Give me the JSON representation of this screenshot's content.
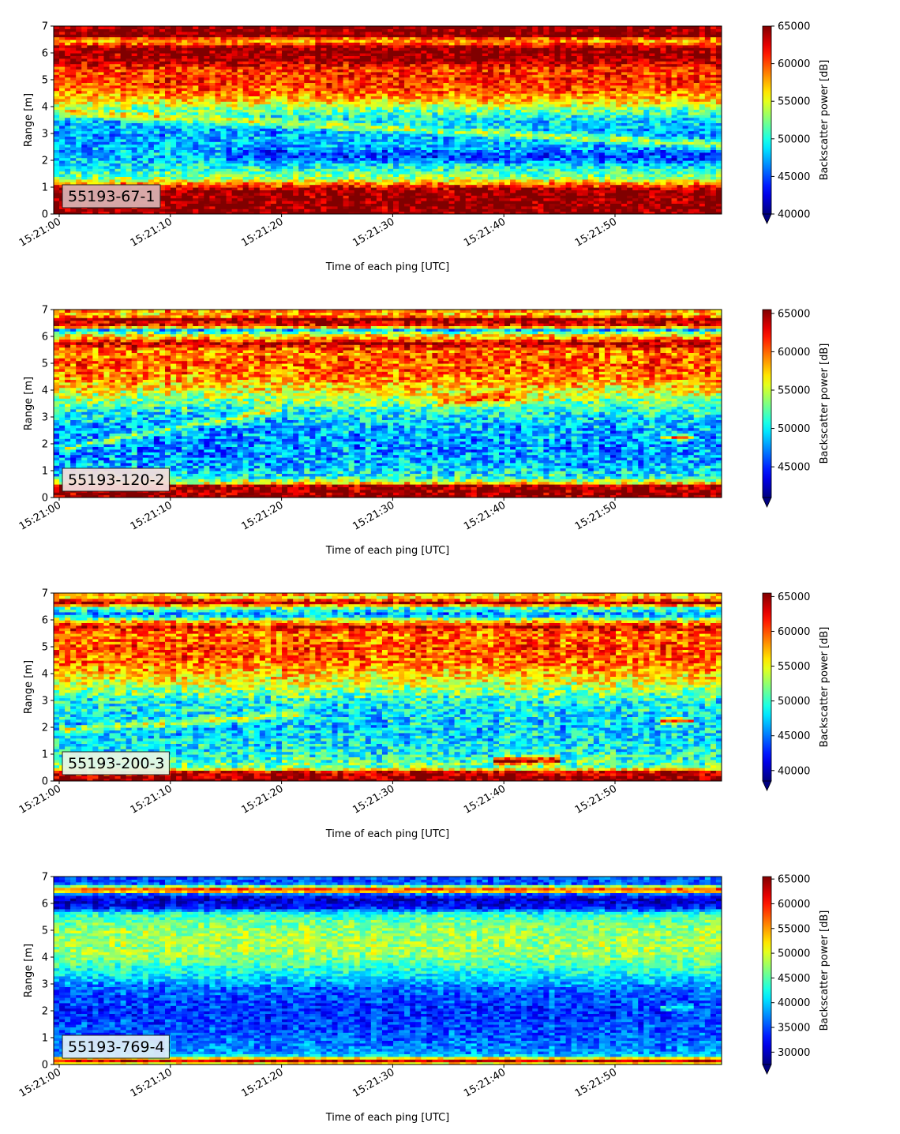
{
  "figure": {
    "xlabel": "Time of each ping [UTC]",
    "ylabel": "Range [m]",
    "colorbar_label": "Backscatter power [dB]"
  },
  "chart_data": [
    {
      "type": "heatmap",
      "label": "55193-67-1",
      "label_box_color": "#d9b0b0",
      "x_ticks": [
        "15:21:00",
        "15:21:10",
        "15:21:20",
        "15:21:30",
        "15:21:40",
        "15:21:50"
      ],
      "y_ticks": [
        0,
        1,
        2,
        3,
        4,
        5,
        6,
        7
      ],
      "ylim": [
        0,
        7
      ],
      "colorbar": {
        "min": 40000,
        "max": 65000,
        "ticks": [
          40000,
          45000,
          50000,
          55000,
          60000,
          65000
        ],
        "colormap": "jet",
        "extend": "min"
      },
      "range_profile": [
        [
          0.0,
          65000
        ],
        [
          0.2,
          65000
        ],
        [
          0.9,
          64500
        ],
        [
          1.05,
          61000
        ],
        [
          1.2,
          57000
        ],
        [
          1.35,
          53000
        ],
        [
          1.6,
          51000
        ],
        [
          2.0,
          48500
        ],
        [
          2.5,
          47500
        ],
        [
          3.0,
          47000
        ],
        [
          3.5,
          48500
        ],
        [
          3.9,
          52000
        ],
        [
          4.2,
          56500
        ],
        [
          4.6,
          59500
        ],
        [
          5.0,
          61000
        ],
        [
          5.4,
          60500
        ],
        [
          5.7,
          64000
        ],
        [
          6.2,
          65000
        ],
        [
          6.35,
          60000
        ],
        [
          6.5,
          57000
        ],
        [
          6.65,
          65000
        ],
        [
          7.0,
          65000
        ]
      ],
      "features": [
        {
          "y_start": 3.8,
          "y_end": 2.6,
          "t_start": 0,
          "t_end": 60,
          "strength": 6000,
          "width": 0.15
        },
        {
          "y_start": 2.2,
          "y_end": 2.1,
          "t_start": 15,
          "t_end": 60,
          "strength": -3500,
          "width": 0.25
        }
      ],
      "noise": 3200,
      "seed": 11
    },
    {
      "type": "heatmap",
      "label": "55193-120-2",
      "label_box_color": "#f2dcdc",
      "x_ticks": [
        "15:21:00",
        "15:21:10",
        "15:21:20",
        "15:21:30",
        "15:21:40",
        "15:21:50"
      ],
      "y_ticks": [
        0,
        1,
        2,
        3,
        4,
        5,
        6,
        7
      ],
      "ylim": [
        0,
        7
      ],
      "colorbar": {
        "min": 41000,
        "max": 65500,
        "ticks": [
          45000,
          50000,
          55000,
          60000,
          65000
        ],
        "colormap": "jet",
        "extend": "min"
      },
      "range_profile": [
        [
          0.0,
          65500
        ],
        [
          0.15,
          65500
        ],
        [
          0.45,
          64500
        ],
        [
          0.55,
          57000
        ],
        [
          0.75,
          51000
        ],
        [
          1.2,
          48500
        ],
        [
          2.0,
          47500
        ],
        [
          2.6,
          48500
        ],
        [
          3.2,
          50500
        ],
        [
          3.8,
          55000
        ],
        [
          4.4,
          59000
        ],
        [
          5.0,
          60500
        ],
        [
          5.5,
          59500
        ],
        [
          5.75,
          64500
        ],
        [
          5.9,
          60000
        ],
        [
          6.05,
          56500
        ],
        [
          6.25,
          49000
        ],
        [
          6.4,
          62000
        ],
        [
          6.65,
          65500
        ],
        [
          6.8,
          57000
        ],
        [
          7.0,
          60000
        ]
      ],
      "features": [
        {
          "y_start": 1.8,
          "y_end": 3.3,
          "t_start": 0,
          "t_end": 20,
          "strength": 5500,
          "width": 0.12
        },
        {
          "y_start": 3.6,
          "y_end": 3.8,
          "t_start": 34,
          "t_end": 42,
          "strength": 6000,
          "width": 0.2
        },
        {
          "y_start": 2.25,
          "y_end": 2.25,
          "t_start": 54,
          "t_end": 57,
          "strength": 12000,
          "width": 0.1
        }
      ],
      "noise": 3600,
      "seed": 23
    },
    {
      "type": "heatmap",
      "label": "55193-200-3",
      "label_box_color": "#e6f5e6",
      "x_ticks": [
        "15:21:00",
        "15:21:10",
        "15:21:20",
        "15:21:30",
        "15:21:40",
        "15:21:50"
      ],
      "y_ticks": [
        0,
        1,
        2,
        3,
        4,
        5,
        6,
        7
      ],
      "ylim": [
        0,
        7
      ],
      "colorbar": {
        "min": 38500,
        "max": 65500,
        "ticks": [
          40000,
          45000,
          50000,
          55000,
          60000,
          65000
        ],
        "colormap": "jet",
        "extend": "min"
      },
      "range_profile": [
        [
          0.0,
          65500
        ],
        [
          0.1,
          65000
        ],
        [
          0.35,
          63000
        ],
        [
          0.5,
          52000
        ],
        [
          1.0,
          49000
        ],
        [
          2.0,
          47500
        ],
        [
          3.0,
          49000
        ],
        [
          3.6,
          54000
        ],
        [
          4.4,
          59000
        ],
        [
          5.0,
          60000
        ],
        [
          5.5,
          58500
        ],
        [
          5.75,
          62500
        ],
        [
          5.95,
          57000
        ],
        [
          6.2,
          45000
        ],
        [
          6.45,
          51000
        ],
        [
          6.65,
          64000
        ],
        [
          6.85,
          56000
        ],
        [
          7.0,
          57000
        ]
      ],
      "features": [
        {
          "y_start": 1.9,
          "y_end": 2.5,
          "t_start": 0,
          "t_end": 22,
          "strength": 6000,
          "width": 0.12
        },
        {
          "y_start": 0.75,
          "y_end": 0.8,
          "t_start": 39,
          "t_end": 45,
          "strength": 14000,
          "width": 0.12
        },
        {
          "y_start": 2.25,
          "y_end": 2.25,
          "t_start": 54,
          "t_end": 57,
          "strength": 13000,
          "width": 0.1
        }
      ],
      "noise": 3900,
      "seed": 37
    },
    {
      "type": "heatmap",
      "label": "55193-769-4",
      "label_box_color": "#dcecf8",
      "x_ticks": [
        "15:21:00",
        "15:21:10",
        "15:21:20",
        "15:21:30",
        "15:21:40",
        "15:21:50"
      ],
      "y_ticks": [
        0,
        1,
        2,
        3,
        4,
        5,
        6,
        7
      ],
      "ylim": [
        0,
        7
      ],
      "colorbar": {
        "min": 27500,
        "max": 65500,
        "ticks": [
          30000,
          35000,
          40000,
          45000,
          50000,
          55000,
          60000,
          65000
        ],
        "colormap": "jet",
        "extend": "min"
      },
      "range_profile": [
        [
          0.0,
          56000
        ],
        [
          0.05,
          52000
        ],
        [
          0.18,
          65500
        ],
        [
          0.3,
          42000
        ],
        [
          0.45,
          38000
        ],
        [
          1.0,
          36000
        ],
        [
          2.0,
          34000
        ],
        [
          2.8,
          36000
        ],
        [
          3.4,
          42000
        ],
        [
          4.2,
          48000
        ],
        [
          5.0,
          47500
        ],
        [
          5.6,
          44000
        ],
        [
          5.85,
          33000
        ],
        [
          6.2,
          30000
        ],
        [
          6.35,
          36000
        ],
        [
          6.5,
          63000
        ],
        [
          6.6,
          52000
        ],
        [
          6.75,
          36000
        ],
        [
          7.0,
          35000
        ]
      ],
      "features": [
        {
          "y_start": 2.1,
          "y_end": 2.15,
          "t_start": 54,
          "t_end": 57,
          "strength": 9000,
          "width": 0.1
        }
      ],
      "noise": 3600,
      "seed": 53
    }
  ]
}
